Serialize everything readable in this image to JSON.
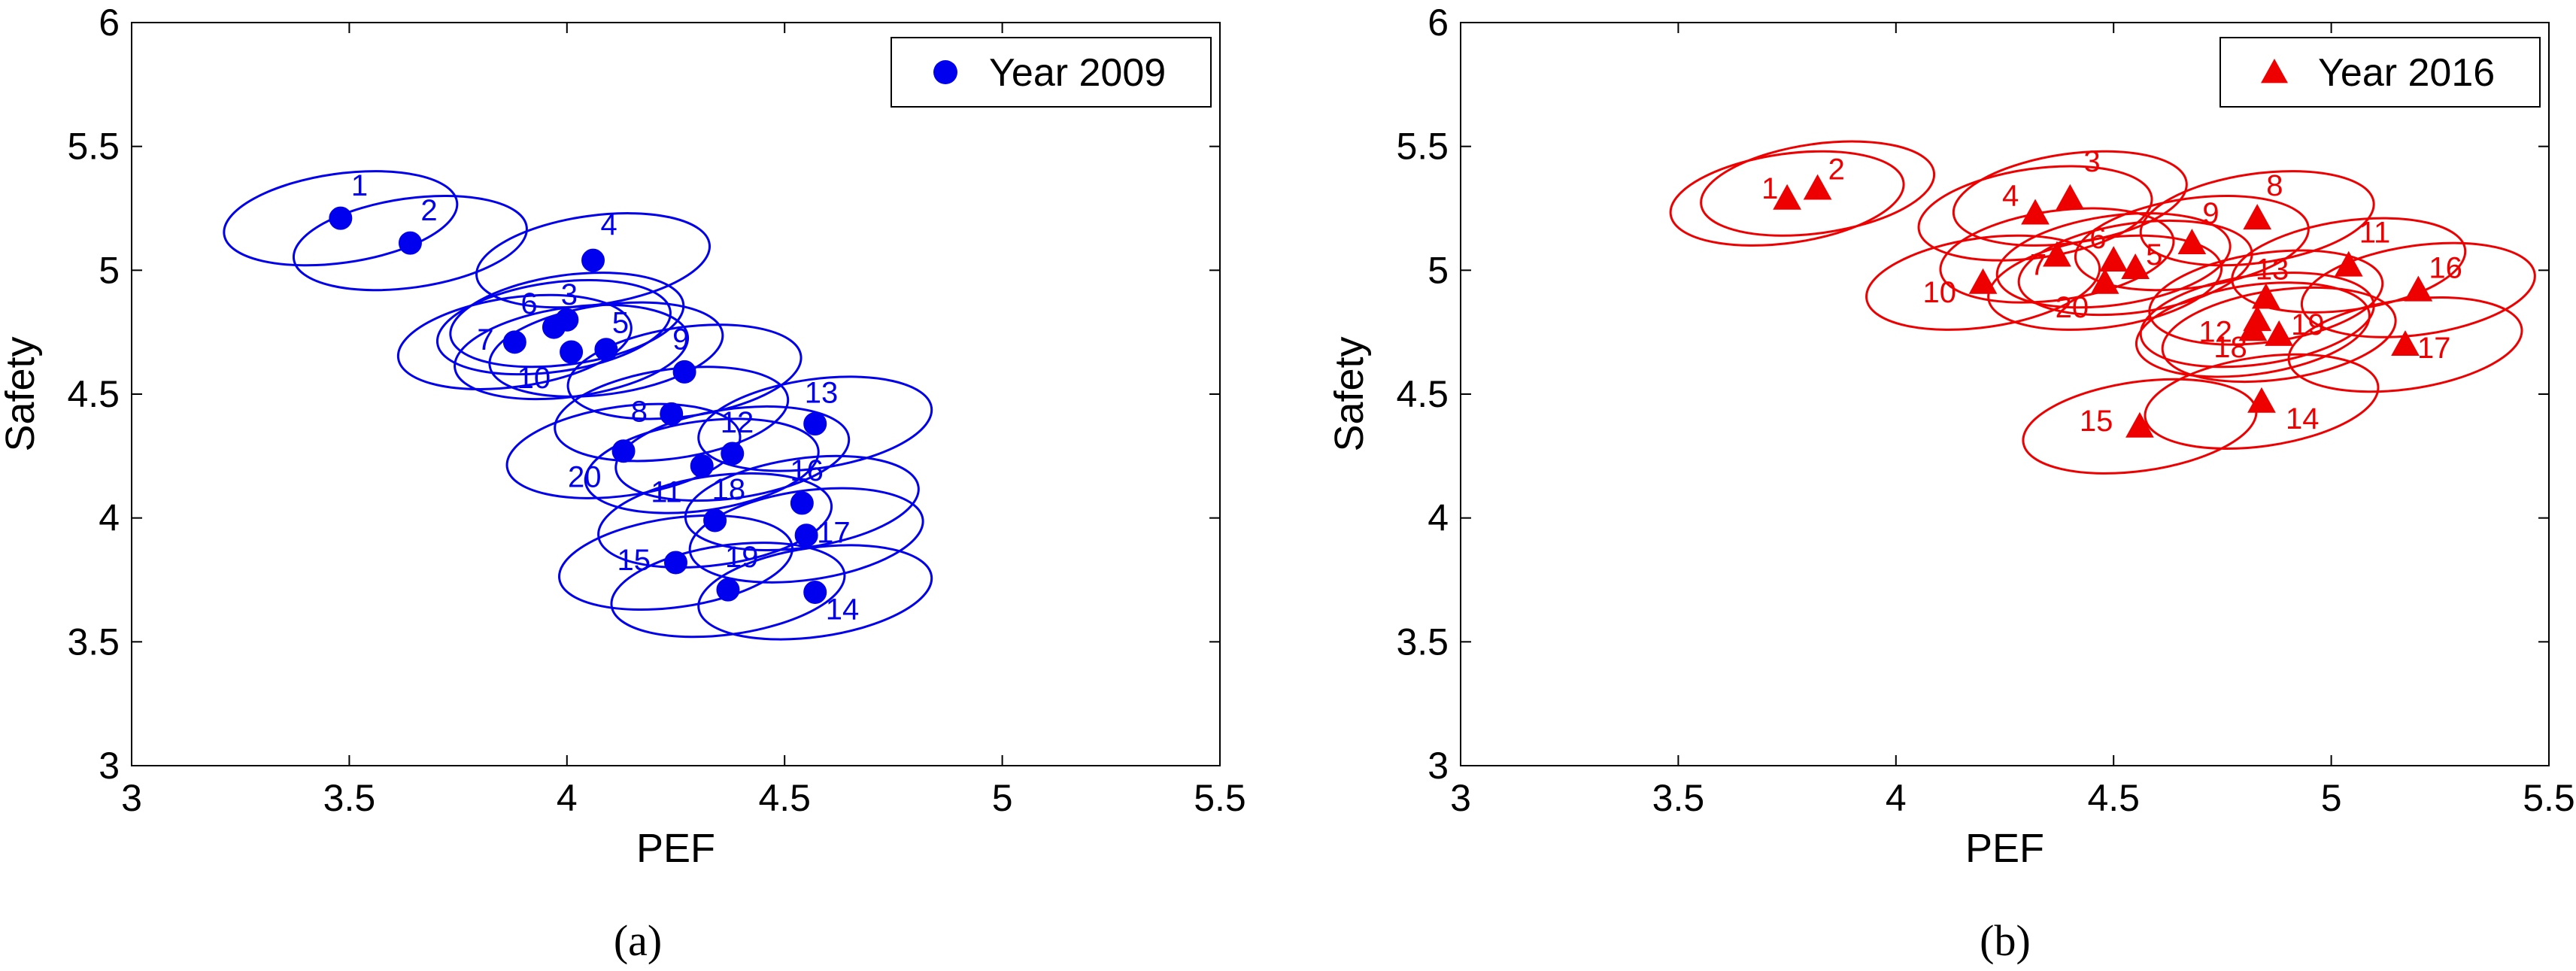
{
  "chart_data": [
    {
      "type": "scatter",
      "caption": "(a)",
      "xlabel": "PEF",
      "ylabel": "Safety",
      "xlim": [
        3,
        5.5
      ],
      "ylim": [
        3,
        6
      ],
      "xticks": [
        "3",
        "3.5",
        "4",
        "4.5",
        "5",
        "5.5"
      ],
      "yticks": [
        "3",
        "3.5",
        "4",
        "4.5",
        "5",
        "5.5",
        "6"
      ],
      "xtick_values": [
        3,
        3.5,
        4,
        4.5,
        5,
        5.5
      ],
      "ytick_values": [
        3,
        3.5,
        4,
        4.5,
        5,
        5.5,
        6
      ],
      "legend": "Year 2009",
      "legend_position": "top-right",
      "color": "#0000ee",
      "marker": "circle",
      "ellipse_radius_pef": 0.27,
      "ellipse_radius_safety": 0.18,
      "ellipse_tilt_deg": -8,
      "points": [
        {
          "label": "1",
          "x": 3.48,
          "y": 5.21
        },
        {
          "label": "2",
          "x": 3.64,
          "y": 5.11
        },
        {
          "label": "3",
          "x": 4.0,
          "y": 4.8
        },
        {
          "label": "4",
          "x": 4.06,
          "y": 5.04
        },
        {
          "label": "5",
          "x": 4.09,
          "y": 4.68
        },
        {
          "label": "6",
          "x": 3.97,
          "y": 4.77
        },
        {
          "label": "7",
          "x": 3.88,
          "y": 4.71
        },
        {
          "label": "8",
          "x": 4.24,
          "y": 4.42
        },
        {
          "label": "9",
          "x": 4.27,
          "y": 4.59
        },
        {
          "label": "10",
          "x": 4.01,
          "y": 4.67
        },
        {
          "label": "11",
          "x": 4.31,
          "y": 4.21
        },
        {
          "label": "12",
          "x": 4.38,
          "y": 4.26
        },
        {
          "label": "13",
          "x": 4.57,
          "y": 4.38
        },
        {
          "label": "14",
          "x": 4.57,
          "y": 3.7
        },
        {
          "label": "15",
          "x": 4.25,
          "y": 3.82
        },
        {
          "label": "16",
          "x": 4.54,
          "y": 4.06
        },
        {
          "label": "17",
          "x": 4.55,
          "y": 3.93
        },
        {
          "label": "18",
          "x": 4.34,
          "y": 3.99
        },
        {
          "label": "19",
          "x": 4.37,
          "y": 3.71
        },
        {
          "label": "20",
          "x": 4.13,
          "y": 4.27
        }
      ]
    },
    {
      "type": "scatter",
      "caption": "(b)",
      "xlabel": "PEF",
      "ylabel": "Safety",
      "xlim": [
        3,
        5.5
      ],
      "ylim": [
        3,
        6
      ],
      "xticks": [
        "3",
        "3.5",
        "4",
        "4.5",
        "5",
        "5.5"
      ],
      "yticks": [
        "3",
        "3.5",
        "4",
        "4.5",
        "5",
        "5.5",
        "6"
      ],
      "xtick_values": [
        3,
        3.5,
        4,
        4.5,
        5,
        5.5
      ],
      "ytick_values": [
        3,
        3.5,
        4,
        4.5,
        5,
        5.5,
        6
      ],
      "legend": "Year 2016",
      "legend_position": "top-right",
      "color": "#ee0000",
      "marker": "triangle",
      "ellipse_radius_pef": 0.27,
      "ellipse_radius_safety": 0.18,
      "ellipse_tilt_deg": -8,
      "points": [
        {
          "label": "1",
          "x": 3.75,
          "y": 5.29
        },
        {
          "label": "2",
          "x": 3.82,
          "y": 5.33
        },
        {
          "label": "3",
          "x": 4.4,
          "y": 5.29
        },
        {
          "label": "4",
          "x": 4.32,
          "y": 5.23
        },
        {
          "label": "5",
          "x": 4.55,
          "y": 5.01
        },
        {
          "label": "6",
          "x": 4.5,
          "y": 5.04
        },
        {
          "label": "7",
          "x": 4.37,
          "y": 5.06
        },
        {
          "label": "8",
          "x": 4.83,
          "y": 5.21
        },
        {
          "label": "9",
          "x": 4.68,
          "y": 5.11
        },
        {
          "label": "10",
          "x": 4.2,
          "y": 4.95
        },
        {
          "label": "11",
          "x": 5.04,
          "y": 5.02
        },
        {
          "label": "12",
          "x": 4.82,
          "y": 4.76
        },
        {
          "label": "13",
          "x": 4.85,
          "y": 4.89
        },
        {
          "label": "14",
          "x": 4.84,
          "y": 4.47
        },
        {
          "label": "15",
          "x": 4.56,
          "y": 4.37
        },
        {
          "label": "16",
          "x": 5.2,
          "y": 4.92
        },
        {
          "label": "17",
          "x": 5.17,
          "y": 4.7
        },
        {
          "label": "18",
          "x": 4.83,
          "y": 4.8
        },
        {
          "label": "19",
          "x": 4.88,
          "y": 4.74
        },
        {
          "label": "20",
          "x": 4.48,
          "y": 4.95
        }
      ]
    }
  ]
}
